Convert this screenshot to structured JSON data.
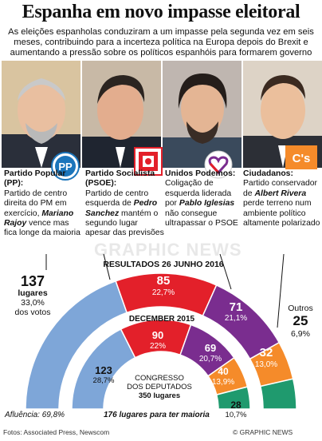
{
  "title": "Espanha em novo impasse eleitoral",
  "subtitle": "As eleições espanholas conduziram a um impasse pela segunda vez em seis meses, contribuindo para a incerteza política na Europa depois do Brexit e aumentando a pressão sobre os políticos espanhóis para formarem governo",
  "parties": [
    {
      "name": "Partido Popular (PP):",
      "desc_a": "Partido de centro direita do PM em exercício, ",
      "leader": "Mariano Rajoy",
      "desc_b": " vence mas fica longe da maioria",
      "logo": "PP",
      "color": "#7ea6d8"
    },
    {
      "name": "Partido Socialista (PSOE):",
      "desc_a": "Partido de centro esquerda de ",
      "leader": "Pedro Sanchez",
      "desc_b": " mantém o segundo lugar apesar das previsões",
      "logo": "PSOE",
      "color": "#e3202a"
    },
    {
      "name": "Unidos Podemos:",
      "desc_a": "Coligação de esquerda liderada por ",
      "leader": "Pablo Iglesias",
      "desc_b": " não consegue ultrapassar o PSOE",
      "logo": "heart",
      "color": "#7a2d8f"
    },
    {
      "name": "Ciudadanos:",
      "desc_a": "Partido conservador de ",
      "leader": "Albert Rivera",
      "desc_b": " perde terreno num ambiente político altamente polarizado",
      "logo": "C's",
      "color": "#f58b2a"
    }
  ],
  "chart_data": [
    {
      "type": "pie",
      "title": "RESULTADOS 26 JUNHO 2016",
      "categories": [
        "PP",
        "PSOE",
        "Unidos Podemos",
        "Ciudadanos",
        "Outros"
      ],
      "values": [
        137,
        85,
        71,
        32,
        25
      ],
      "percent_labels": [
        "33,0%",
        "22,7%",
        "21,1%",
        "13,0%",
        "6,9%"
      ],
      "colors": [
        "#7ea6d8",
        "#e3202a",
        "#7a2d8f",
        "#f58b2a",
        "#1f9a6e"
      ],
      "extra_labels": {
        "pp_seats_word": "lugares",
        "pp_votes_word": "dos votos",
        "others_label": "Outros"
      }
    },
    {
      "type": "pie",
      "title": "DECEMBER 2015",
      "categories": [
        "PP",
        "PSOE",
        "Podemos",
        "Ciudadanos",
        "Outros"
      ],
      "values": [
        123,
        90,
        69,
        40,
        28
      ],
      "percent_labels": [
        "28,7%",
        "22%",
        "20,7%",
        "13,9%",
        "10,7%"
      ],
      "colors": [
        "#7ea6d8",
        "#e3202a",
        "#7a2d8f",
        "#f58b2a",
        "#1f9a6e"
      ],
      "center_label_1": "CONGRESSO",
      "center_label_2": "DOS DEPUTADOS",
      "center_label_3": "350 lugares"
    }
  ],
  "footer": {
    "turnout": "Afluência: 69,8%",
    "majority": "176 lugares para ter maioria",
    "source": "Fotos: Associated Press, Newscom",
    "copyright": "© GRAPHIC NEWS",
    "watermark": "GRAPHIC NEWS"
  }
}
